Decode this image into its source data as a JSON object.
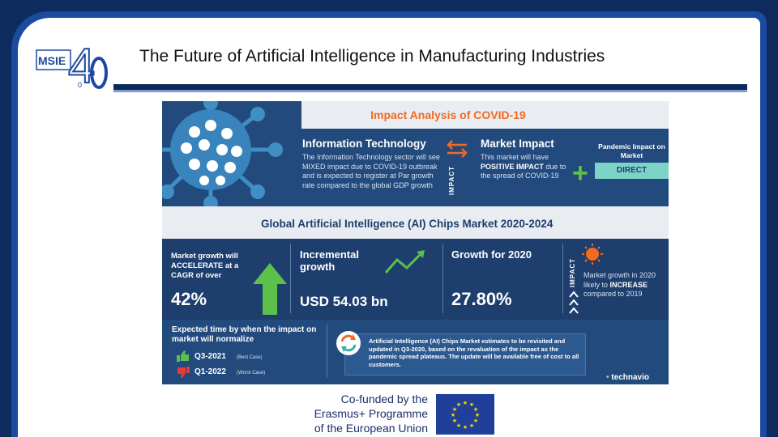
{
  "slide": {
    "title": "The Future of Artificial Intelligence in Manufacturing Industries",
    "logo": {
      "icon": "msie-4-0-logo",
      "text_left": "MSIE",
      "text_big": "4",
      "text_small": "0"
    }
  },
  "infographic": {
    "impact_title": "Impact Analysis of COVID-19",
    "information_technology": {
      "heading": "Information Technology",
      "text": "The Information Technology sector will see MIXED impact due to COVID-19 outbreak and is expected to register at Par growth rate compared to the global GDP growth"
    },
    "impact_label": "IMPACT",
    "market_impact": {
      "heading": "Market Impact",
      "text_before": "This market will have",
      "highlight": "POSITIVE IMPACT",
      "text_after": "due to the spread of COVID-19"
    },
    "pandemic_impact": {
      "label": "Pandemic Impact on Market",
      "value": "DIRECT"
    },
    "chips_market_title": "Global Artificial Intelligence (AI) Chips Market 2020-2024",
    "market_growth": {
      "text": "Market growth will ACCELERATE at a CAGR of over",
      "value": "42%"
    },
    "incremental_growth": {
      "heading": "Incremental growth",
      "value": "USD 54.03 bn"
    },
    "growth_2020": {
      "heading": "Growth for 2020",
      "value": "27.80%"
    },
    "impact_label_2": "IMPACT",
    "market_growth_2020": {
      "text_before": "Market growth in 2020 likely to",
      "highlight": "INCREASE",
      "text_after": "compared to 2019"
    },
    "expected_time": {
      "text": "Expected time by when the impact on market will normalize",
      "best": {
        "quarter": "Q3-2021",
        "case": "(Best Case)"
      },
      "worst": {
        "quarter": "Q1-2022",
        "case": "(Worst Case)"
      }
    },
    "note": "Artificial Intelligence (AI) Chips Market estimates to be revisited and updated in Q3-2020, based on the revaluation of the impact as the pandemic spread plateaus. The update will be available free of cost to all customers.",
    "brand": {
      "dot": "•",
      "name": "technavio"
    },
    "colors": {
      "orange": "#f26a21",
      "green": "#5cc04a",
      "teal": "#7ed3c8",
      "navy": "#1e3e6e"
    }
  },
  "cofunded": {
    "line1": "Co-funded by the",
    "line2": "Erasmus+ Programme",
    "line3": "of the European Union",
    "flag_icon": "eu-flag-icon"
  }
}
